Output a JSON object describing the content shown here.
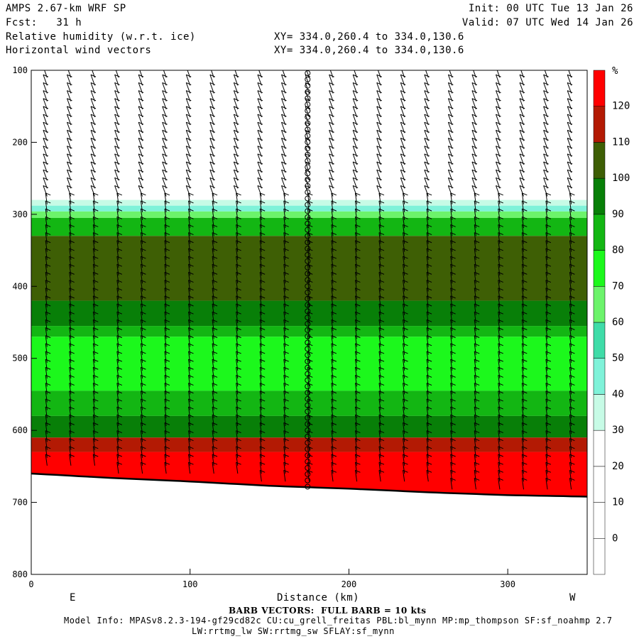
{
  "header": {
    "model": "AMPS 2.67-km WRF SP",
    "fcst": "Fcst:   31 h",
    "field1": "Relative humidity (w.r.t. ice)",
    "field2": "Horizontal wind vectors",
    "init": "Init: 00 UTC Tue 13 Jan 26",
    "valid": "Valid: 07 UTC Wed 14 Jan 26",
    "xy1": "XY= 334.0,260.4 to 334.0,130.6",
    "xy2": "XY= 334.0,260.4 to 334.0,130.6"
  },
  "footer": {
    "barb_note": "BARB VECTORS:  FULL BARB = 10 kts",
    "model_info": "Model Info: MPASv8.2.3-194-gf29cd82c CU:cu_grell_freitas PBL:bl_mynn MP:mp_thompson SF:sf_noahmp 2.7",
    "model_info2": "LW:rrtmg_lw SW:rrtmg_sw SFLAY:sf_mynn"
  },
  "colors": {
    "c20_30": "#ffffff",
    "c30_40": "#c7fbe6",
    "c40_50": "#7ff2d9",
    "c50_60": "#3fdca8",
    "c60_70": "#6cf36b",
    "c70_80": "#1cf81c",
    "c80_90": "#13b613",
    "c90_100": "#087f08",
    "c100_110": "#3e5f05",
    "c110_120": "#b31a04",
    "c120_130": "#ff0000"
  },
  "chart_data": {
    "type": "heatmap",
    "title": "Relative humidity (w.r.t. ice)",
    "xlabel": "Distance (km)",
    "ylabel": "",
    "xlim": [
      0,
      350
    ],
    "ylim": [
      800,
      100
    ],
    "x_ticks": [
      0,
      100,
      200,
      300
    ],
    "y_ticks": [
      100,
      200,
      300,
      400,
      500,
      600,
      700,
      800
    ],
    "x_end_labels": {
      "left": "E",
      "right": "W"
    },
    "colorbar": {
      "unit": "%",
      "levels": [
        0,
        10,
        20,
        30,
        40,
        50,
        60,
        70,
        80,
        90,
        100,
        110,
        120
      ],
      "tick_labels": [
        "0",
        "10",
        "20",
        "30",
        "40",
        "50",
        "60",
        "70",
        "80",
        "90",
        "100",
        "110",
        "120"
      ]
    },
    "terrain_pressure": [
      {
        "x": 0,
        "p": 660
      },
      {
        "x": 50,
        "p": 666
      },
      {
        "x": 100,
        "p": 671
      },
      {
        "x": 150,
        "p": 677
      },
      {
        "x": 200,
        "p": 681
      },
      {
        "x": 250,
        "p": 686
      },
      {
        "x": 300,
        "p": 690
      },
      {
        "x": 350,
        "p": 692
      }
    ],
    "rh_bands": [
      {
        "p_top": 280,
        "p_bot": 288,
        "rh": 35
      },
      {
        "p_top": 288,
        "p_bot": 296,
        "rh": 45
      },
      {
        "p_top": 296,
        "p_bot": 305,
        "rh": 65
      },
      {
        "p_top": 305,
        "p_bot": 330,
        "rh": 85
      },
      {
        "p_top": 330,
        "p_bot": 420,
        "rh": 105
      },
      {
        "p_top": 420,
        "p_bot": 455,
        "rh": 95
      },
      {
        "p_top": 455,
        "p_bot": 470,
        "rh": 85
      },
      {
        "p_top": 470,
        "p_bot": 545,
        "rh": 75
      },
      {
        "p_top": 545,
        "p_bot": 580,
        "rh": 85
      },
      {
        "p_top": 580,
        "p_bot": 610,
        "rh": 95
      },
      {
        "p_top": 610,
        "p_bot": 630,
        "rh": 115
      },
      {
        "p_top": 630,
        "p_bot": 700,
        "rh": 125
      }
    ],
    "barb_columns_x": [
      10,
      25,
      40,
      55,
      70,
      85,
      100,
      115,
      130,
      145,
      160,
      175,
      190,
      205,
      220,
      235,
      250,
      265,
      280,
      295,
      310,
      325,
      340
    ],
    "calm_column_x": 174
  }
}
